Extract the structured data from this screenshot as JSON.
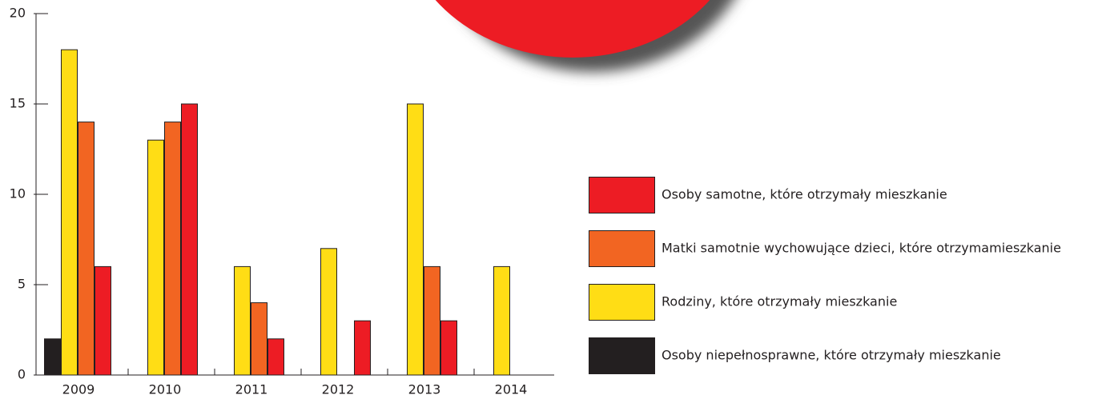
{
  "chart_data": {
    "type": "bar",
    "categories": [
      "2009",
      "2010",
      "2011",
      "2012",
      "2013",
      "2014"
    ],
    "series": [
      {
        "name": "Osoby niepełnosprawne, które otrzymały mieszkanie",
        "color": "#231f20",
        "values": [
          2,
          0,
          0,
          0,
          0,
          0
        ]
      },
      {
        "name": "Rodziny, które otrzymały mieszkanie",
        "color": "#ffdd15",
        "values": [
          18,
          13,
          6,
          7,
          15,
          6
        ]
      },
      {
        "name": "Matki samotnie wychowujące dzieci, które otrzymamieszkanie",
        "color": "#f26522",
        "values": [
          14,
          14,
          4,
          0,
          6,
          0
        ]
      },
      {
        "name": "Osoby samotne, które otrzymały mieszkanie",
        "color": "#ed1c24",
        "values": [
          6,
          15,
          2,
          3,
          3,
          0
        ]
      }
    ],
    "ylim": [
      0,
      20
    ],
    "yticks": [
      0,
      5,
      10,
      15,
      20
    ],
    "legend": "right"
  }
}
